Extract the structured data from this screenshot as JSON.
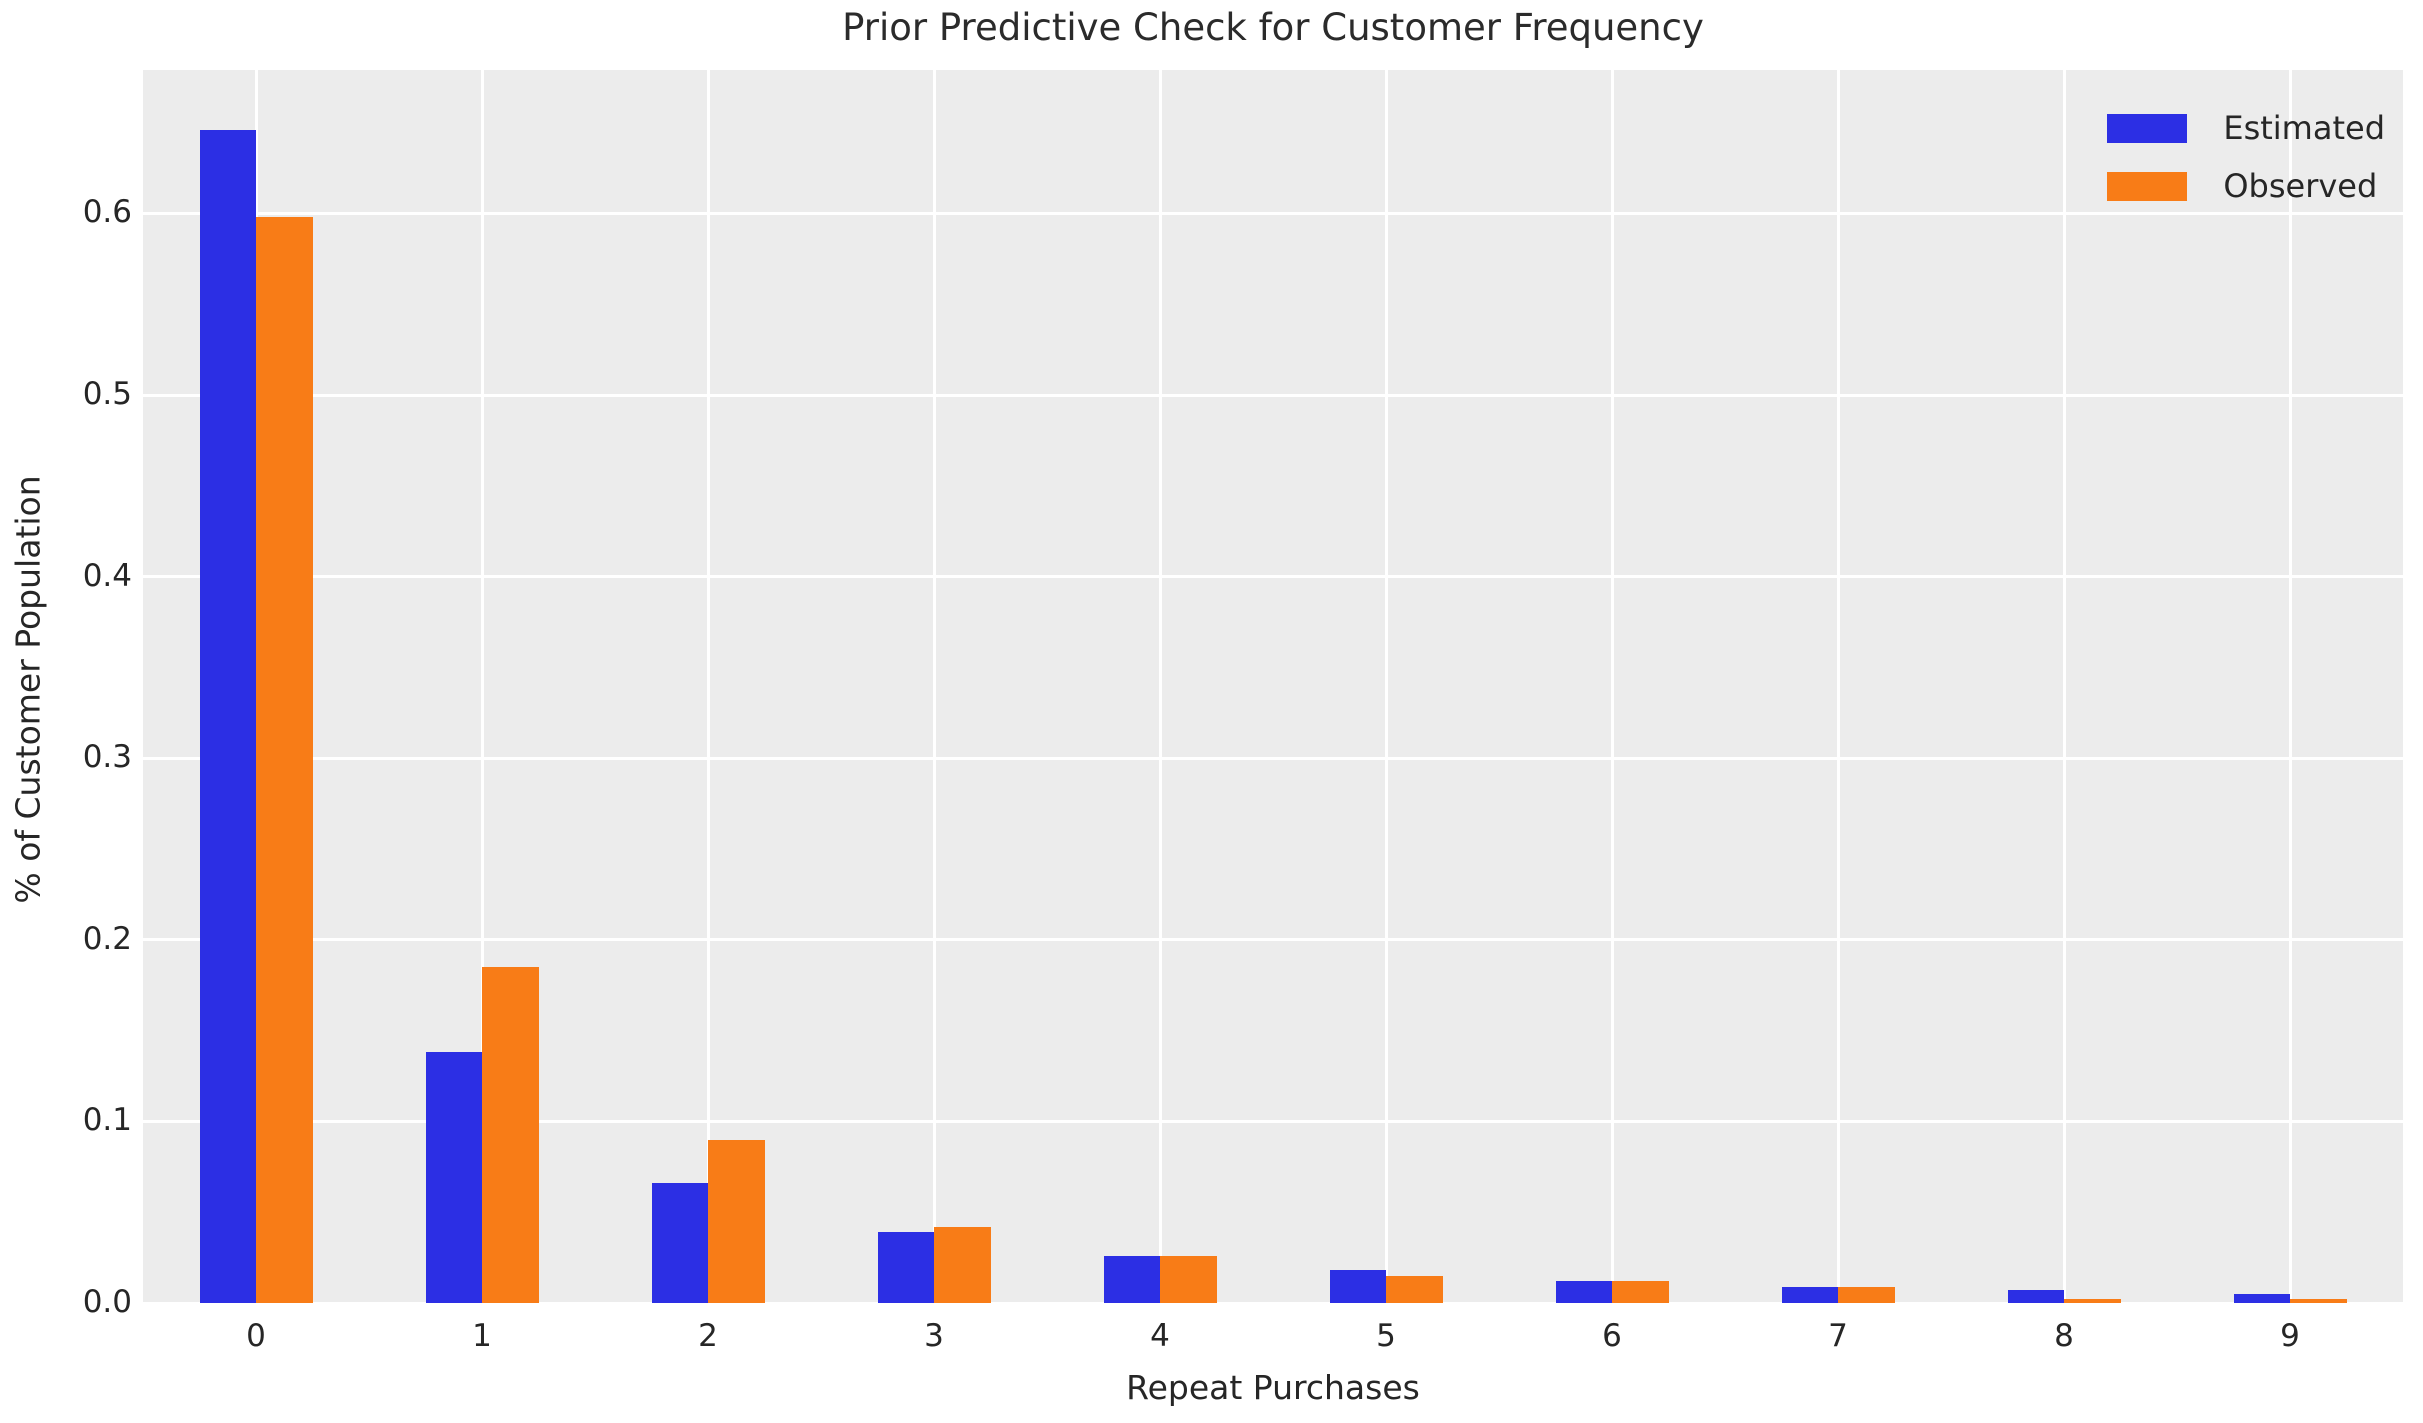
{
  "title": "Prior Predictive Check for Customer Frequency",
  "chart_data": {
    "type": "bar",
    "title": "Prior Predictive Check for Customer Frequency",
    "xlabel": "Repeat Purchases",
    "ylabel": "% of Customer Population",
    "categories": [
      "0",
      "1",
      "2",
      "3",
      "4",
      "5",
      "6",
      "7",
      "8",
      "9"
    ],
    "series": [
      {
        "name": "Estimated",
        "color": "#2c2fe4",
        "values": [
          0.646,
          0.138,
          0.066,
          0.039,
          0.026,
          0.018,
          0.012,
          0.009,
          0.007,
          0.005
        ]
      },
      {
        "name": "Observed",
        "color": "#f87c17",
        "values": [
          0.598,
          0.185,
          0.09,
          0.042,
          0.026,
          0.015,
          0.012,
          0.009,
          0.002,
          0.002
        ]
      }
    ],
    "yticks": [
      "0.0",
      "0.1",
      "0.2",
      "0.3",
      "0.4",
      "0.5",
      "0.6"
    ],
    "ytick_values": [
      0.0,
      0.1,
      0.2,
      0.3,
      0.4,
      0.5,
      0.6
    ],
    "ylim": [
      0,
      0.679
    ],
    "xlim": [
      -0.5,
      9.5
    ],
    "grid": "on",
    "legend_position": "upper right",
    "plot_background": "#ececec",
    "gridline_color": "#ffffff",
    "text_color": "#262626",
    "bar_width_fraction": 0.25
  }
}
